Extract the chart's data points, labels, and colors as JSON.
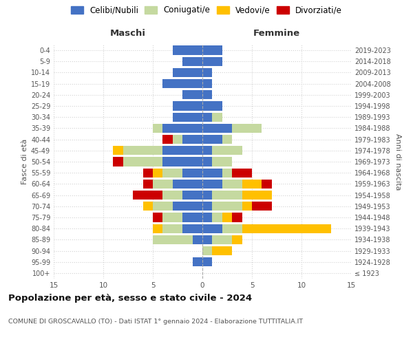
{
  "age_groups": [
    "100+",
    "95-99",
    "90-94",
    "85-89",
    "80-84",
    "75-79",
    "70-74",
    "65-69",
    "60-64",
    "55-59",
    "50-54",
    "45-49",
    "40-44",
    "35-39",
    "30-34",
    "25-29",
    "20-24",
    "15-19",
    "10-14",
    "5-9",
    "0-4"
  ],
  "birth_years": [
    "≤ 1923",
    "1924-1928",
    "1929-1933",
    "1934-1938",
    "1939-1943",
    "1944-1948",
    "1949-1953",
    "1954-1958",
    "1959-1963",
    "1964-1968",
    "1969-1973",
    "1974-1978",
    "1979-1983",
    "1984-1988",
    "1989-1993",
    "1994-1998",
    "1999-2003",
    "2004-2008",
    "2009-2013",
    "2014-2018",
    "2019-2023"
  ],
  "males": {
    "celibi": [
      0,
      1,
      0,
      1,
      2,
      2,
      3,
      2,
      3,
      2,
      4,
      4,
      2,
      4,
      3,
      3,
      2,
      4,
      3,
      2,
      3
    ],
    "coniugati": [
      0,
      0,
      0,
      4,
      2,
      2,
      2,
      2,
      2,
      2,
      4,
      4,
      1,
      1,
      0,
      0,
      0,
      0,
      0,
      0,
      0
    ],
    "vedovi": [
      0,
      0,
      0,
      0,
      1,
      0,
      1,
      0,
      0,
      1,
      0,
      1,
      0,
      0,
      0,
      0,
      0,
      0,
      0,
      0,
      0
    ],
    "divorziati": [
      0,
      0,
      0,
      0,
      0,
      1,
      0,
      3,
      1,
      1,
      1,
      0,
      1,
      0,
      0,
      0,
      0,
      0,
      0,
      0,
      0
    ]
  },
  "females": {
    "nubili": [
      0,
      1,
      0,
      1,
      2,
      1,
      1,
      1,
      2,
      2,
      1,
      1,
      2,
      3,
      1,
      2,
      1,
      1,
      1,
      2,
      2
    ],
    "coniugate": [
      0,
      0,
      1,
      2,
      2,
      1,
      3,
      3,
      2,
      1,
      2,
      3,
      1,
      3,
      1,
      0,
      0,
      0,
      0,
      0,
      0
    ],
    "vedove": [
      0,
      0,
      2,
      1,
      9,
      1,
      1,
      3,
      2,
      0,
      0,
      0,
      0,
      0,
      0,
      0,
      0,
      0,
      0,
      0,
      0
    ],
    "divorziate": [
      0,
      0,
      0,
      0,
      0,
      1,
      2,
      0,
      1,
      2,
      0,
      0,
      0,
      0,
      0,
      0,
      0,
      0,
      0,
      0,
      0
    ]
  },
  "colors": {
    "celibi": "#4472c4",
    "coniugati": "#c5d9a0",
    "vedovi": "#ffc000",
    "divorziati": "#cc0000"
  },
  "title": "Popolazione per età, sesso e stato civile - 2024",
  "subtitle": "COMUNE DI GROSCAVALLO (TO) - Dati ISTAT 1° gennaio 2024 - Elaborazione TUTTITALIA.IT",
  "ylabel_left": "Fasce di età",
  "ylabel_right": "Anni di nascita",
  "xlabel_left": "Maschi",
  "xlabel_right": "Femmine",
  "xlim": 15,
  "background_color": "#ffffff",
  "legend_labels": [
    "Celibi/Nubili",
    "Coniugati/e",
    "Vedovi/e",
    "Divorziati/e"
  ]
}
